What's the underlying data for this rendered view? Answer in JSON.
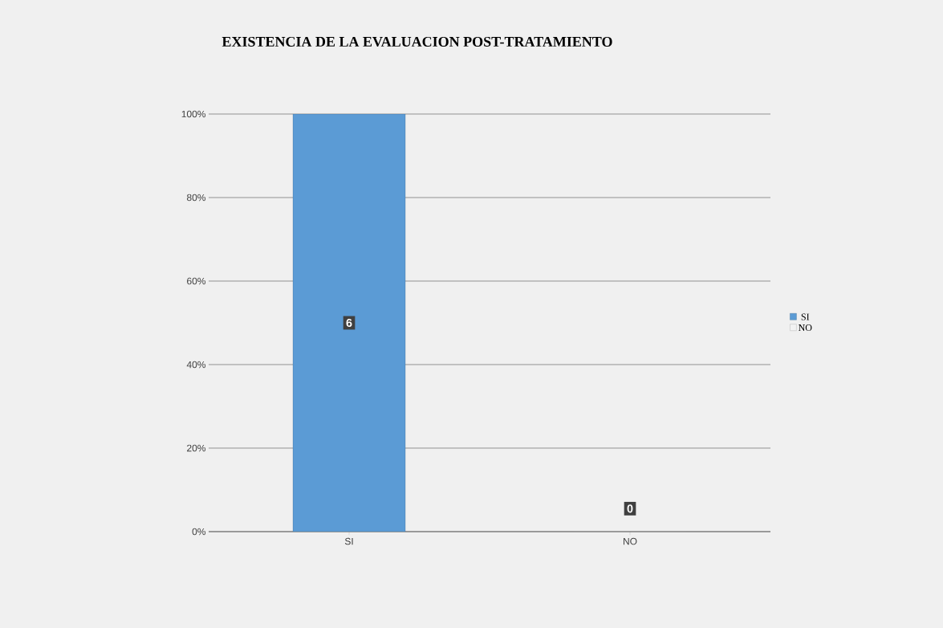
{
  "chart_data": {
    "type": "bar",
    "title": "EXISTENCIA DE LA EVALUACION POST-TRATAMIENTO",
    "categories": [
      "SI",
      "NO"
    ],
    "series": [
      {
        "name": "SI",
        "color": "#5b9bd5",
        "values": [
          100,
          null
        ]
      },
      {
        "name": "NO",
        "color": "#f2f2f2",
        "values": [
          null,
          0
        ]
      }
    ],
    "annotations": [
      {
        "text": "6",
        "x": "SI",
        "y": 50
      },
      {
        "text": "0",
        "x": "NO",
        "y": 0
      }
    ],
    "ylim": [
      0,
      100
    ],
    "yticks": [
      {
        "value": 0,
        "label": "0%"
      },
      {
        "value": 20,
        "label": "20%"
      },
      {
        "value": 40,
        "label": "40%"
      },
      {
        "value": 60,
        "label": "60%"
      },
      {
        "value": 80,
        "label": "80%"
      },
      {
        "value": 100,
        "label": "100%"
      }
    ],
    "grid": "y",
    "legend": "right"
  }
}
